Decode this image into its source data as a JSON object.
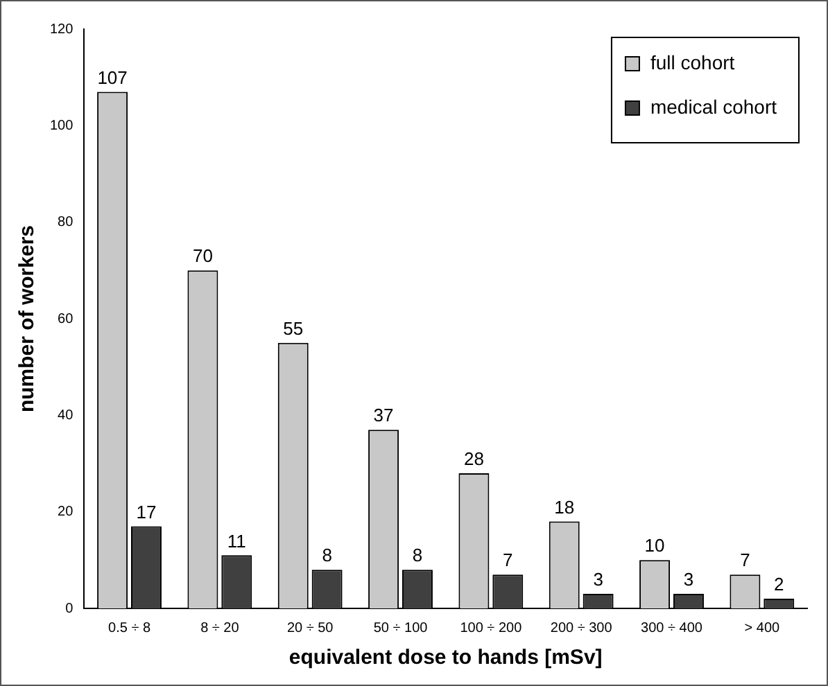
{
  "chart_data": {
    "type": "bar",
    "xlabel": "equivalent dose to hands [mSv]",
    "ylabel": "number of workers",
    "categories": [
      "0.5 ÷ 8",
      "8 ÷ 20",
      "20 ÷ 50",
      "50 ÷ 100",
      "100 ÷ 200",
      "200 ÷ 300",
      "300 ÷ 400",
      "> 400"
    ],
    "series": [
      {
        "name": "full cohort",
        "color": "#c8c8c8",
        "values": [
          107,
          70,
          55,
          37,
          28,
          18,
          10,
          7
        ]
      },
      {
        "name": "medical cohort",
        "color": "#404040",
        "values": [
          17,
          11,
          8,
          8,
          7,
          3,
          3,
          2
        ]
      }
    ],
    "ylim": [
      0,
      120
    ],
    "yticks": [
      0,
      20,
      40,
      60,
      80,
      100,
      120
    ],
    "grid": false,
    "legend": "top right",
    "data_labels": true
  }
}
